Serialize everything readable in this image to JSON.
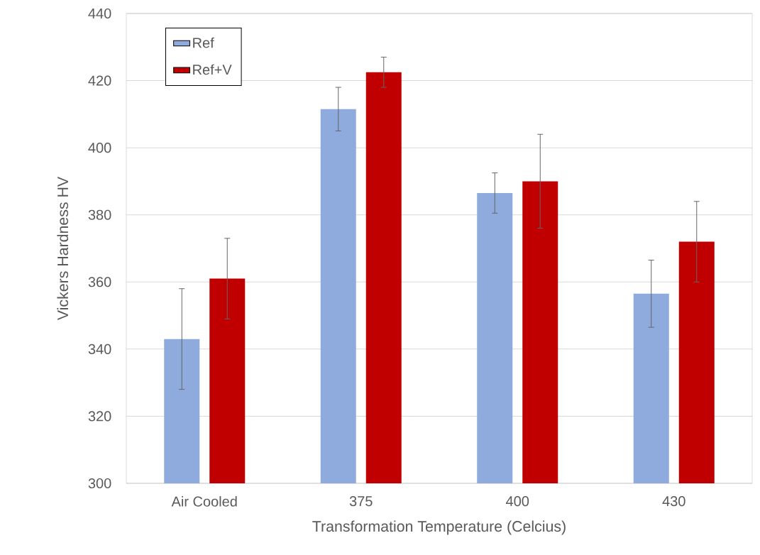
{
  "chart_data": {
    "type": "bar",
    "xlabel": "Transformation Temperature (Celcius)",
    "ylabel": "Vickers Hardness HV",
    "categories": [
      "Air Cooled",
      "375",
      "400",
      "430"
    ],
    "series": [
      {
        "name": "Ref",
        "color": "#8faadc",
        "values": [
          343,
          411.5,
          386.5,
          356.5
        ],
        "errors": [
          15,
          6.5,
          6,
          10
        ]
      },
      {
        "name": "Ref+V",
        "color": "#c00000",
        "values": [
          361,
          422.5,
          390,
          372
        ],
        "errors": [
          12,
          4.5,
          14,
          12
        ]
      }
    ],
    "ylim": [
      300,
      440
    ],
    "yticks": [
      300,
      320,
      340,
      360,
      380,
      400,
      420,
      440
    ],
    "grid": "y",
    "legend": "top left"
  }
}
